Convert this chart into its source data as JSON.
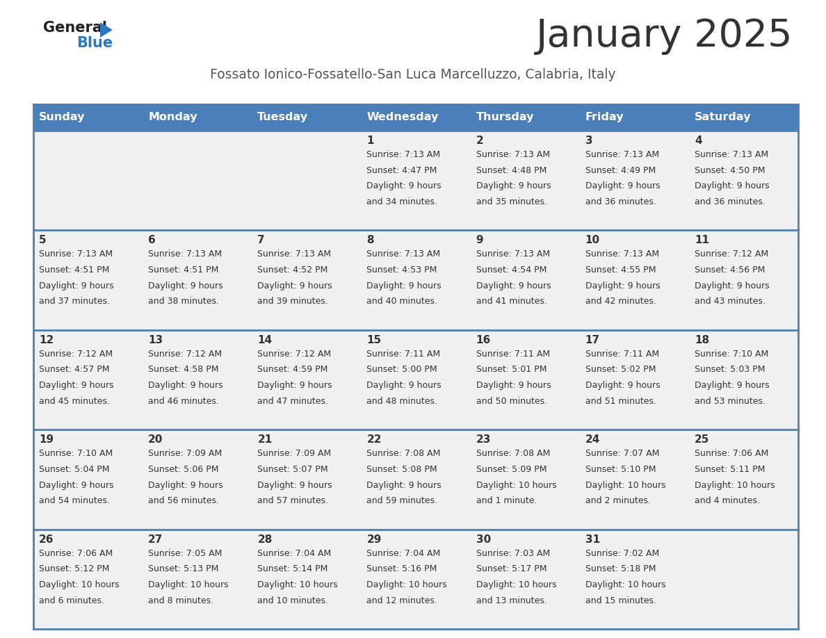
{
  "title": "January 2025",
  "subtitle": "Fossato Ionico-Fossatello-San Luca Marcelluzzo, Calabria, Italy",
  "days_of_week": [
    "Sunday",
    "Monday",
    "Tuesday",
    "Wednesday",
    "Thursday",
    "Friday",
    "Saturday"
  ],
  "header_bg": "#4a7fba",
  "header_text": "#ffffff",
  "row_bg": "#f0f0f0",
  "cell_border": "#4a7fba",
  "day_num_color": "#333333",
  "cell_text_color": "#333333",
  "title_color": "#333333",
  "subtitle_color": "#555555",
  "logo_general_color": "#222222",
  "logo_blue_color": "#2878c3",
  "calendar_data": [
    {
      "day": 1,
      "col": 3,
      "row": 0,
      "sunrise": "7:13 AM",
      "sunset": "4:47 PM",
      "daylight": "9 hours and 34 minutes."
    },
    {
      "day": 2,
      "col": 4,
      "row": 0,
      "sunrise": "7:13 AM",
      "sunset": "4:48 PM",
      "daylight": "9 hours and 35 minutes."
    },
    {
      "day": 3,
      "col": 5,
      "row": 0,
      "sunrise": "7:13 AM",
      "sunset": "4:49 PM",
      "daylight": "9 hours and 36 minutes."
    },
    {
      "day": 4,
      "col": 6,
      "row": 0,
      "sunrise": "7:13 AM",
      "sunset": "4:50 PM",
      "daylight": "9 hours and 36 minutes."
    },
    {
      "day": 5,
      "col": 0,
      "row": 1,
      "sunrise": "7:13 AM",
      "sunset": "4:51 PM",
      "daylight": "9 hours and 37 minutes."
    },
    {
      "day": 6,
      "col": 1,
      "row": 1,
      "sunrise": "7:13 AM",
      "sunset": "4:51 PM",
      "daylight": "9 hours and 38 minutes."
    },
    {
      "day": 7,
      "col": 2,
      "row": 1,
      "sunrise": "7:13 AM",
      "sunset": "4:52 PM",
      "daylight": "9 hours and 39 minutes."
    },
    {
      "day": 8,
      "col": 3,
      "row": 1,
      "sunrise": "7:13 AM",
      "sunset": "4:53 PM",
      "daylight": "9 hours and 40 minutes."
    },
    {
      "day": 9,
      "col": 4,
      "row": 1,
      "sunrise": "7:13 AM",
      "sunset": "4:54 PM",
      "daylight": "9 hours and 41 minutes."
    },
    {
      "day": 10,
      "col": 5,
      "row": 1,
      "sunrise": "7:13 AM",
      "sunset": "4:55 PM",
      "daylight": "9 hours and 42 minutes."
    },
    {
      "day": 11,
      "col": 6,
      "row": 1,
      "sunrise": "7:12 AM",
      "sunset": "4:56 PM",
      "daylight": "9 hours and 43 minutes."
    },
    {
      "day": 12,
      "col": 0,
      "row": 2,
      "sunrise": "7:12 AM",
      "sunset": "4:57 PM",
      "daylight": "9 hours and 45 minutes."
    },
    {
      "day": 13,
      "col": 1,
      "row": 2,
      "sunrise": "7:12 AM",
      "sunset": "4:58 PM",
      "daylight": "9 hours and 46 minutes."
    },
    {
      "day": 14,
      "col": 2,
      "row": 2,
      "sunrise": "7:12 AM",
      "sunset": "4:59 PM",
      "daylight": "9 hours and 47 minutes."
    },
    {
      "day": 15,
      "col": 3,
      "row": 2,
      "sunrise": "7:11 AM",
      "sunset": "5:00 PM",
      "daylight": "9 hours and 48 minutes."
    },
    {
      "day": 16,
      "col": 4,
      "row": 2,
      "sunrise": "7:11 AM",
      "sunset": "5:01 PM",
      "daylight": "9 hours and 50 minutes."
    },
    {
      "day": 17,
      "col": 5,
      "row": 2,
      "sunrise": "7:11 AM",
      "sunset": "5:02 PM",
      "daylight": "9 hours and 51 minutes."
    },
    {
      "day": 18,
      "col": 6,
      "row": 2,
      "sunrise": "7:10 AM",
      "sunset": "5:03 PM",
      "daylight": "9 hours and 53 minutes."
    },
    {
      "day": 19,
      "col": 0,
      "row": 3,
      "sunrise": "7:10 AM",
      "sunset": "5:04 PM",
      "daylight": "9 hours and 54 minutes."
    },
    {
      "day": 20,
      "col": 1,
      "row": 3,
      "sunrise": "7:09 AM",
      "sunset": "5:06 PM",
      "daylight": "9 hours and 56 minutes."
    },
    {
      "day": 21,
      "col": 2,
      "row": 3,
      "sunrise": "7:09 AM",
      "sunset": "5:07 PM",
      "daylight": "9 hours and 57 minutes."
    },
    {
      "day": 22,
      "col": 3,
      "row": 3,
      "sunrise": "7:08 AM",
      "sunset": "5:08 PM",
      "daylight": "9 hours and 59 minutes."
    },
    {
      "day": 23,
      "col": 4,
      "row": 3,
      "sunrise": "7:08 AM",
      "sunset": "5:09 PM",
      "daylight": "10 hours and 1 minute."
    },
    {
      "day": 24,
      "col": 5,
      "row": 3,
      "sunrise": "7:07 AM",
      "sunset": "5:10 PM",
      "daylight": "10 hours and 2 minutes."
    },
    {
      "day": 25,
      "col": 6,
      "row": 3,
      "sunrise": "7:06 AM",
      "sunset": "5:11 PM",
      "daylight": "10 hours and 4 minutes."
    },
    {
      "day": 26,
      "col": 0,
      "row": 4,
      "sunrise": "7:06 AM",
      "sunset": "5:12 PM",
      "daylight": "10 hours and 6 minutes."
    },
    {
      "day": 27,
      "col": 1,
      "row": 4,
      "sunrise": "7:05 AM",
      "sunset": "5:13 PM",
      "daylight": "10 hours and 8 minutes."
    },
    {
      "day": 28,
      "col": 2,
      "row": 4,
      "sunrise": "7:04 AM",
      "sunset": "5:14 PM",
      "daylight": "10 hours and 10 minutes."
    },
    {
      "day": 29,
      "col": 3,
      "row": 4,
      "sunrise": "7:04 AM",
      "sunset": "5:16 PM",
      "daylight": "10 hours and 12 minutes."
    },
    {
      "day": 30,
      "col": 4,
      "row": 4,
      "sunrise": "7:03 AM",
      "sunset": "5:17 PM",
      "daylight": "10 hours and 13 minutes."
    },
    {
      "day": 31,
      "col": 5,
      "row": 4,
      "sunrise": "7:02 AM",
      "sunset": "5:18 PM",
      "daylight": "10 hours and 15 minutes."
    }
  ]
}
